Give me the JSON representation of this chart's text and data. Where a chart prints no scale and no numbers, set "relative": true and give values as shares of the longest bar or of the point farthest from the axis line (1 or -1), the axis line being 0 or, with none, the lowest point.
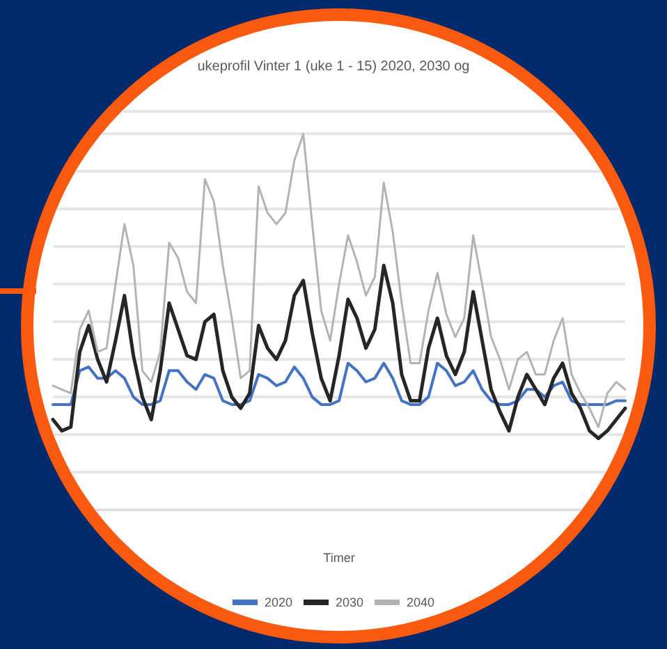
{
  "chart_data": {
    "type": "line",
    "title": "ukeprofil Vinter 1 (uke 1 - 15) 2020, 2030 og",
    "xlabel": "Timer",
    "relative": true,
    "grid": "y",
    "legend": "bottom",
    "marker": "none",
    "line_style": "solid",
    "categories": [
      null,
      null,
      null,
      null,
      null,
      null,
      null,
      null,
      null,
      null,
      null,
      null,
      null,
      null,
      null,
      null,
      null,
      null,
      null,
      null,
      null,
      null,
      null,
      null,
      null,
      null,
      null,
      null,
      null,
      null,
      null,
      null,
      null,
      null,
      null,
      null,
      null,
      null,
      null,
      null,
      null,
      null,
      null,
      null,
      null,
      null,
      null,
      null,
      null,
      null,
      null,
      null,
      null,
      null,
      null,
      null,
      null,
      null,
      null,
      null,
      null,
      null,
      null,
      null,
      null
    ],
    "series": [
      {
        "name": "2020",
        "color": "#4472c4",
        "values": [
          0.28,
          0.28,
          0.28,
          0.37,
          0.38,
          0.35,
          0.35,
          0.37,
          0.35,
          0.3,
          0.28,
          0.28,
          0.29,
          0.37,
          0.37,
          0.34,
          0.32,
          0.36,
          0.35,
          0.29,
          0.28,
          0.28,
          0.29,
          0.36,
          0.35,
          0.33,
          0.34,
          0.38,
          0.35,
          0.3,
          0.28,
          0.28,
          0.29,
          0.39,
          0.37,
          0.34,
          0.35,
          0.39,
          0.35,
          0.29,
          0.28,
          0.28,
          0.3,
          0.39,
          0.37,
          0.33,
          0.34,
          0.37,
          0.32,
          0.29,
          0.28,
          0.28,
          0.29,
          0.32,
          0.32,
          0.3,
          0.33,
          0.34,
          0.29,
          0.28,
          0.28,
          0.28,
          0.28,
          0.29,
          0.29
        ]
      },
      {
        "name": "2030",
        "color": "#262626",
        "values": [
          0.24,
          0.21,
          0.22,
          0.42,
          0.49,
          0.4,
          0.34,
          0.45,
          0.57,
          0.41,
          0.3,
          0.24,
          0.37,
          0.55,
          0.48,
          0.41,
          0.4,
          0.5,
          0.52,
          0.37,
          0.3,
          0.27,
          0.31,
          0.49,
          0.43,
          0.4,
          0.45,
          0.57,
          0.61,
          0.47,
          0.35,
          0.29,
          0.41,
          0.56,
          0.51,
          0.43,
          0.48,
          0.65,
          0.55,
          0.36,
          0.29,
          0.29,
          0.43,
          0.51,
          0.41,
          0.36,
          0.42,
          0.58,
          0.45,
          0.32,
          0.26,
          0.21,
          0.3,
          0.36,
          0.32,
          0.28,
          0.35,
          0.39,
          0.31,
          0.27,
          0.21,
          0.19,
          0.21,
          0.24,
          0.27
        ]
      },
      {
        "name": "2040",
        "color": "#b3b3b3",
        "values": [
          0.33,
          0.32,
          0.31,
          0.48,
          0.53,
          0.42,
          0.43,
          0.6,
          0.76,
          0.65,
          0.37,
          0.34,
          0.42,
          0.71,
          0.67,
          0.58,
          0.55,
          0.88,
          0.82,
          0.65,
          0.51,
          0.35,
          0.37,
          0.86,
          0.79,
          0.76,
          0.79,
          0.93,
          1.0,
          0.76,
          0.53,
          0.45,
          0.6,
          0.73,
          0.66,
          0.57,
          0.62,
          0.87,
          0.74,
          0.55,
          0.39,
          0.39,
          0.53,
          0.63,
          0.52,
          0.46,
          0.51,
          0.73,
          0.6,
          0.46,
          0.4,
          0.32,
          0.4,
          0.42,
          0.36,
          0.36,
          0.45,
          0.51,
          0.36,
          0.31,
          0.27,
          0.22,
          0.31,
          0.34,
          0.32
        ]
      }
    ]
  }
}
